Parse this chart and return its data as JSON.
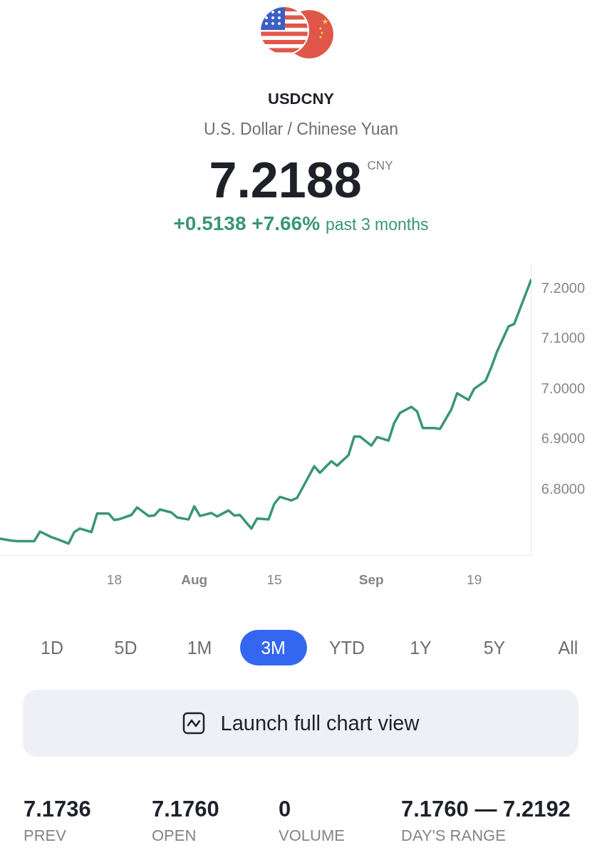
{
  "chart_data": {
    "type": "line",
    "title": "USDCNY",
    "subtitle": "U.S. Dollar / Chinese Yuan",
    "x": [
      "--06-28",
      "--06-30",
      "--07-01",
      "--07-04",
      "--07-05",
      "--07-07",
      "--07-08",
      "--07-10",
      "--07-11",
      "--07-12",
      "--07-14",
      "--07-15",
      "--07-17",
      "--07-18",
      "--07-19",
      "--07-21",
      "--07-22",
      "--07-24",
      "--07-25",
      "--07-26",
      "--07-28",
      "--07-29",
      "--07-31",
      "--08-01",
      "--08-02",
      "--08-04",
      "--08-05",
      "--08-07",
      "--08-08",
      "--08-09",
      "--08-11",
      "--08-12",
      "--08-14",
      "--08-15",
      "--08-16",
      "--08-18",
      "--08-19",
      "--08-22",
      "--08-23",
      "--08-25",
      "--08-26",
      "--08-28",
      "--08-29",
      "--08-30",
      "--09-01",
      "--09-02",
      "--09-04",
      "--09-05",
      "--09-06",
      "--09-08",
      "--09-09",
      "--09-10",
      "--09-12",
      "--09-13",
      "--09-15",
      "--09-16",
      "--09-18",
      "--09-19",
      "--09-21",
      "--09-22",
      "--09-23",
      "--09-25",
      "--09-26",
      "--09-29"
    ],
    "series": [
      {
        "color": "#3a957a",
        "values": [
          6.703,
          6.699,
          6.698,
          6.698,
          6.717,
          6.706,
          6.702,
          6.693,
          6.716,
          6.723,
          6.716,
          6.753,
          6.753,
          6.74,
          6.742,
          6.75,
          6.765,
          6.748,
          6.749,
          6.761,
          6.755,
          6.745,
          6.741,
          6.767,
          6.748,
          6.754,
          6.747,
          6.759,
          6.749,
          6.75,
          6.723,
          6.743,
          6.741,
          6.772,
          6.786,
          6.779,
          6.784,
          6.847,
          6.834,
          6.857,
          6.848,
          6.869,
          6.906,
          6.906,
          6.888,
          6.905,
          6.898,
          6.933,
          6.953,
          6.965,
          6.956,
          6.923,
          6.923,
          6.921,
          6.96,
          6.992,
          6.979,
          7.001,
          7.017,
          7.044,
          7.075,
          7.125,
          7.13,
          7.219
        ]
      }
    ],
    "xlim": [
      "--06-28",
      "--09-29"
    ],
    "ylim": [
      6.67,
      7.25
    ],
    "xticks": [
      {
        "value": "--07-18",
        "label": "18"
      },
      {
        "value": "--08-01",
        "label": "Aug"
      },
      {
        "value": "--08-15",
        "label": "15"
      },
      {
        "value": "--09-01",
        "label": "Sep"
      },
      {
        "value": "--09-19",
        "label": "19"
      }
    ],
    "yticks": [
      {
        "value": 6.8,
        "label": "6.8000"
      },
      {
        "value": 6.9,
        "label": "6.9000"
      },
      {
        "value": 7.0,
        "label": "7.0000"
      },
      {
        "value": 7.1,
        "label": "7.1000"
      },
      {
        "value": 7.2,
        "label": "7.2000"
      }
    ],
    "legend": false,
    "annotations": [
      "7.2188",
      "CNY",
      "+0.5138",
      "+7.66%",
      "past 3 months",
      "1D",
      "5D",
      "1M",
      "3M",
      "YTD",
      "1Y",
      "5Y",
      "All",
      "Launch full chart view",
      "7.1736",
      "PREV",
      "7.1760",
      "OPEN",
      "0",
      "VOLUME",
      "7.1760 — 7.2192",
      "DAY'S RANGE"
    ]
  }
}
